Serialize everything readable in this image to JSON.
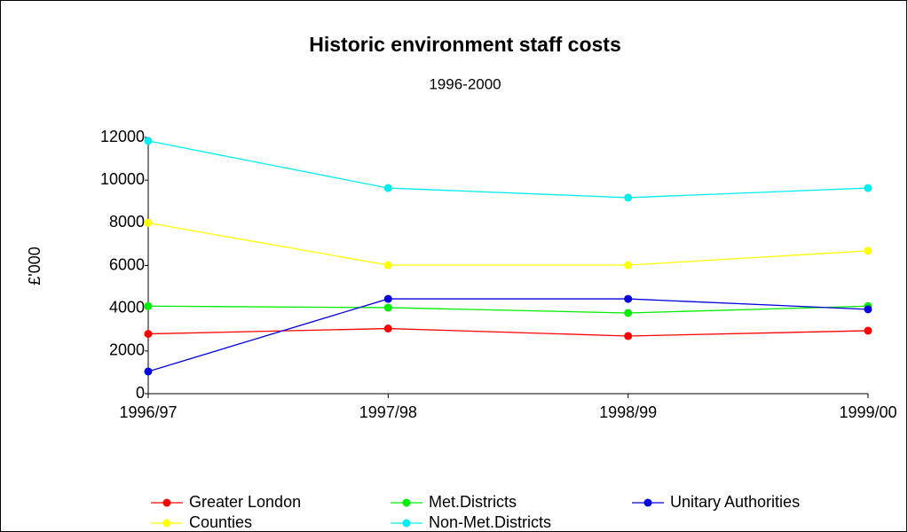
{
  "chart_data": {
    "type": "line",
    "title": "Historic environment staff costs",
    "subtitle": "1996-2000",
    "y_label": "£'000",
    "categories": [
      "1996/97",
      "1997/98",
      "1998/99",
      "1999/00"
    ],
    "series": [
      {
        "name": "Greater London",
        "color": "#ff0000",
        "values": [
          2800,
          3050,
          2700,
          2950
        ]
      },
      {
        "name": "Met.Districts",
        "color": "#00ee00",
        "values": [
          4100,
          4030,
          3780,
          4100
        ]
      },
      {
        "name": "Unitary Authorities",
        "color": "#0000dd",
        "values": [
          1040,
          4440,
          4440,
          3950
        ]
      },
      {
        "name": "Counties",
        "color": "#ffff00",
        "values": [
          8000,
          6020,
          6020,
          6690
        ]
      },
      {
        "name": "Non-Met.Districts",
        "color": "#00eeee",
        "values": [
          11840,
          9630,
          9180,
          9630
        ]
      }
    ],
    "ylim": [
      0,
      12000
    ],
    "yticks": [
      0,
      2000,
      4000,
      6000,
      8000,
      10000,
      12000
    ],
    "grid": false
  }
}
